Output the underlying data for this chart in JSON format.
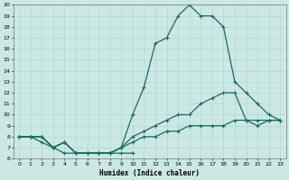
{
  "xlabel": "Humidex (Indice chaleur)",
  "bg_color": "#cce8e4",
  "line_color": "#1a6b5a",
  "grid_color": "#b0d8d0",
  "xlim": [
    -0.5,
    23.5
  ],
  "ylim": [
    6,
    20
  ],
  "xticks": [
    0,
    1,
    2,
    3,
    4,
    5,
    6,
    7,
    8,
    9,
    10,
    11,
    12,
    13,
    14,
    15,
    16,
    17,
    18,
    19,
    20,
    21,
    22,
    23
  ],
  "yticks": [
    6,
    7,
    8,
    9,
    10,
    11,
    12,
    13,
    14,
    15,
    16,
    17,
    18,
    19,
    20
  ],
  "series_peak": {
    "x": [
      0,
      1,
      2,
      3,
      4,
      5,
      6,
      7,
      8,
      9,
      10,
      11,
      12,
      13,
      14,
      15,
      16,
      17,
      18,
      19,
      20,
      21,
      22,
      23
    ],
    "y": [
      8,
      8,
      8,
      7,
      7.5,
      6.5,
      6.5,
      6.5,
      6.5,
      7,
      10,
      12.5,
      16.5,
      17,
      19,
      20,
      19,
      19,
      18,
      13,
      12,
      11,
      10,
      9.5
    ]
  },
  "series_mid_high": {
    "x": [
      0,
      1,
      2,
      3,
      4,
      5,
      6,
      7,
      8,
      9,
      10,
      11,
      12,
      13,
      14,
      15,
      16,
      17,
      18,
      19,
      20,
      21,
      22,
      23
    ],
    "y": [
      8,
      8,
      8,
      7,
      7.5,
      6.5,
      6.5,
      6.5,
      6.5,
      7,
      8,
      8.5,
      9,
      9.5,
      10,
      10,
      11,
      11.5,
      12,
      12,
      9.5,
      9,
      9.5,
      9.5
    ]
  },
  "series_low_rise": {
    "x": [
      0,
      1,
      2,
      3,
      4,
      5,
      6,
      7,
      8,
      9,
      10,
      11,
      12,
      13,
      14,
      15,
      16,
      17,
      18,
      19,
      20,
      21,
      22,
      23
    ],
    "y": [
      8,
      8,
      8,
      7,
      7.5,
      6.5,
      6.5,
      6.5,
      6.5,
      7,
      7.5,
      8,
      8,
      8.5,
      8.5,
      9,
      9,
      9,
      9,
      9.5,
      9.5,
      9.5,
      9.5,
      9.5
    ]
  },
  "series_dip": {
    "x": [
      0,
      1,
      2,
      3,
      4,
      5,
      6,
      7,
      8,
      9,
      10
    ],
    "y": [
      8,
      8,
      7.5,
      7,
      6.5,
      6.5,
      6.5,
      6.5,
      6.5,
      6.5,
      6.5
    ]
  }
}
